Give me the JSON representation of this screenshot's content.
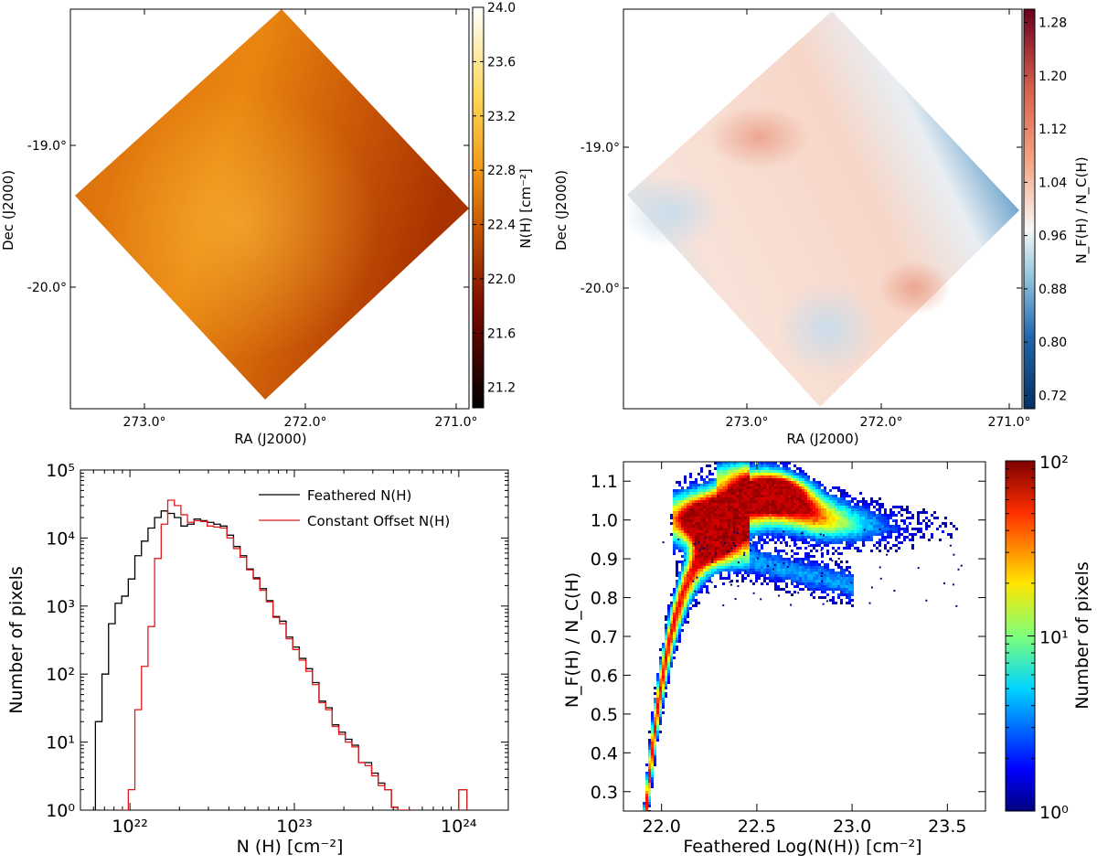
{
  "chart_data": [
    {
      "type": "heatmap",
      "panel": "top-left",
      "xlabel": "RA (J2000)",
      "ylabel": "Dec (J2000)",
      "x_ticks": [
        "273.0°",
        "272.0°",
        "271.0°"
      ],
      "y_ticks": [
        "-19.0°",
        "-20.0°"
      ],
      "colorbar_label": "N(H) [cm⁻²]",
      "colorbar_ticks": [
        "24.0",
        "23.6",
        "23.2",
        "22.8",
        "22.4",
        "22.0",
        "21.6",
        "21.2"
      ],
      "colorbar_range": [
        21.05,
        24.0
      ],
      "colormap": "afmhot",
      "colors": {
        "dark": "#2a0000",
        "mid": "#d86d0a",
        "light": "#ffffff"
      }
    },
    {
      "type": "heatmap",
      "panel": "top-right",
      "xlabel": "RA (J2000)",
      "ylabel": "Dec (J2000)",
      "x_ticks": [
        "273.0°",
        "272.0°",
        "271.0°"
      ],
      "y_ticks": [
        "-19.0°",
        "-20.0°"
      ],
      "colorbar_label": "N_F(H) / N_C(H)",
      "colorbar_ticks": [
        "1.28",
        "1.20",
        "1.12",
        "1.04",
        "0.96",
        "0.88",
        "0.80",
        "0.72"
      ],
      "colorbar_range": [
        0.7,
        1.3
      ],
      "colormap": "RdBu_r",
      "colors": {
        "low": "#08306b",
        "mid": "#f7f7f7",
        "high": "#67000d"
      }
    },
    {
      "type": "line",
      "panel": "bottom-left",
      "title": "",
      "xlabel": "N (H) [cm⁻²]",
      "ylabel": "Number of pixels",
      "x_scale": "log",
      "y_scale": "log",
      "xlim": [
        5e+21,
        2e+24
      ],
      "ylim": [
        1,
        100000
      ],
      "x_tick_labels": [
        "10²²",
        "10²³",
        "10²⁴"
      ],
      "y_tick_labels": [
        "10⁰",
        "10¹",
        "10²",
        "10³",
        "10⁴",
        "10⁵"
      ],
      "legend_position": "top-right",
      "series": [
        {
          "name": "Feathered N(H)",
          "color": "#000000",
          "log_x": [
            21.81,
            21.85,
            21.89,
            21.93,
            21.97,
            22.01,
            22.05,
            22.09,
            22.13,
            22.17,
            22.21,
            22.25,
            22.29,
            22.33,
            22.37,
            22.41,
            22.45,
            22.49,
            22.53,
            22.57,
            22.61,
            22.65,
            22.69,
            22.73,
            22.77,
            22.81,
            22.85,
            22.89,
            22.93,
            22.97,
            23.01,
            23.05,
            23.09,
            23.13,
            23.17,
            23.21,
            23.25,
            23.29,
            23.33,
            23.37,
            23.41,
            23.45,
            23.49,
            23.53,
            23.57,
            23.61,
            23.65,
            23.69
          ],
          "counts": [
            20,
            100,
            550,
            1100,
            1400,
            2500,
            5500,
            9000,
            14000,
            20000,
            25000,
            23000,
            20000,
            15000,
            16000,
            19000,
            18000,
            17000,
            16000,
            15000,
            11000,
            7500,
            5500,
            3500,
            2600,
            1800,
            1200,
            700,
            600,
            350,
            250,
            170,
            120,
            75,
            40,
            32,
            18,
            14,
            11,
            9,
            5,
            5,
            3.5,
            2.5,
            2,
            1.1,
            1,
            1
          ]
        },
        {
          "name": "Constant Offset N(H)",
          "color": "#e31a1c",
          "log_x": [
            21.97,
            22.01,
            22.05,
            22.09,
            22.13,
            22.17,
            22.21,
            22.25,
            22.29,
            22.33,
            22.37,
            22.41,
            22.45,
            22.49,
            22.53,
            22.57,
            22.61,
            22.65,
            22.69,
            22.73,
            22.77,
            22.81,
            22.85,
            22.89,
            22.93,
            22.97,
            23.01,
            23.05,
            23.09,
            23.13,
            23.17,
            23.21,
            23.25,
            23.29,
            23.33,
            23.37,
            23.41,
            23.45,
            23.49,
            23.53,
            23.57,
            23.61,
            23.65,
            23.69
          ],
          "counts": [
            1,
            2,
            30,
            130,
            500,
            5000,
            16000,
            36000,
            30000,
            22000,
            17000,
            18000,
            17500,
            15000,
            14500,
            14000,
            10000,
            7000,
            5200,
            3400,
            2500,
            1700,
            1150,
            680,
            550,
            330,
            230,
            160,
            110,
            70,
            38,
            30,
            17,
            13,
            10,
            8.5,
            5,
            4.5,
            3.2,
            2.3,
            2,
            1.1,
            1,
            1
          ]
        }
      ],
      "outlier": {
        "log_x_range": [
          24.0,
          24.05
        ],
        "count": 2
      }
    },
    {
      "type": "heatmap",
      "panel": "bottom-right",
      "xlabel": "Feathered Log(N(H)) [cm⁻²]",
      "ylabel": "N_F(H) / N_C(H)",
      "xlim": [
        21.8,
        23.7
      ],
      "ylim": [
        0.25,
        1.15
      ],
      "x_ticks": [
        22.0,
        22.5,
        23.0,
        23.5
      ],
      "y_ticks": [
        0.3,
        0.4,
        0.5,
        0.6,
        0.7,
        0.8,
        0.9,
        1.0,
        1.1
      ],
      "colorbar_label": "Number of pixels",
      "colorbar_scale": "log",
      "colorbar_range": [
        1,
        100
      ],
      "colorbar_tick_labels": [
        "10⁰",
        "10¹",
        "10²"
      ],
      "colormap": "jet"
    }
  ],
  "labels": {
    "tl_colorbar_label": "N(H) [cm⁻²]",
    "tr_colorbar_label": "N_F(H) / N_C(H)"
  }
}
